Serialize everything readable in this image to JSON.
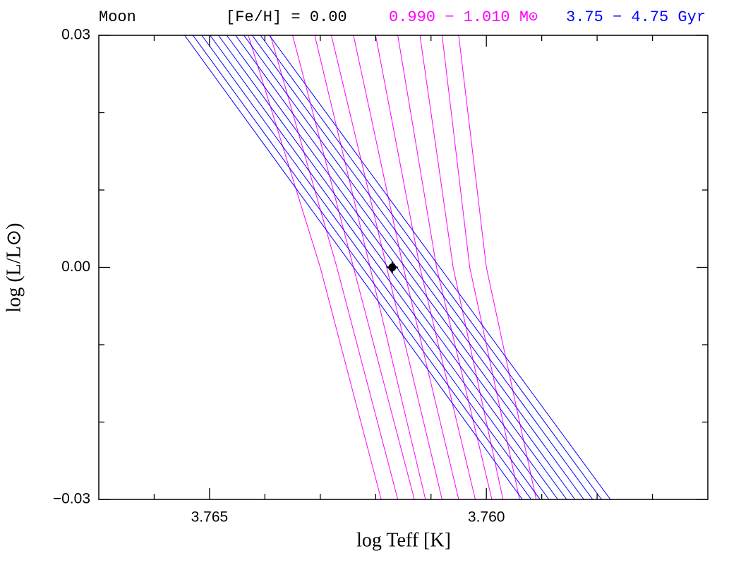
{
  "chart_data": {
    "type": "line",
    "header": [
      "Moon",
      "[Fe/H] = 0.00"
    ],
    "x_label": "log Teff [K]",
    "y_label": "log (L/L⊙)",
    "xlim": [
      3.767,
      3.756
    ],
    "ylim": [
      -0.03,
      0.03
    ],
    "xticks": [
      3.765,
      {
        "value": 3.76,
        "label": "3.760"
      }
    ],
    "xminor": [
      3.766,
      3.764,
      3.763,
      3.762,
      3.761,
      3.759,
      3.758,
      3.757
    ],
    "yticks": [
      {
        "value": -0.03,
        "label": "−0.03"
      },
      {
        "value": 0,
        "label": "0.00"
      },
      0.03
    ],
    "yminor": [
      -0.02,
      -0.01,
      0.01,
      0.02
    ],
    "groups": [
      {
        "label": "0.990 − 1.010 M⊙",
        "color": "#ff00ff",
        "lines": [
          {
            "x": [
              3.7643,
              3.763,
              3.7619
            ],
            "y": [
              0.03,
              0,
              -0.03
            ]
          },
          {
            "x": [
              3.7639,
              3.7627,
              3.7616
            ],
            "y": [
              0.03,
              0,
              -0.03
            ]
          },
          {
            "x": [
              3.7635,
              3.7624,
              3.7613
            ],
            "y": [
              0.03,
              0,
              -0.03
            ]
          },
          {
            "x": [
              3.7631,
              3.7621,
              3.7611
            ],
            "y": [
              0.03,
              0,
              -0.03
            ]
          },
          {
            "x": [
              3.7628,
              3.7618,
              3.7608
            ],
            "y": [
              0.03,
              0,
              -0.03
            ]
          },
          {
            "x": [
              3.7624,
              3.7615,
              3.7605
            ],
            "y": [
              0.03,
              0,
              -0.03
            ]
          },
          {
            "x": [
              3.762,
              3.7612,
              3.7602
            ],
            "y": [
              0.03,
              0,
              -0.03
            ]
          },
          {
            "x": [
              3.7616,
              3.7609,
              3.7599
            ],
            "y": [
              0.03,
              0,
              -0.03
            ]
          },
          {
            "x": [
              3.7612,
              3.7606,
              3.7597
            ],
            "y": [
              0.03,
              0,
              -0.03
            ]
          },
          {
            "x": [
              3.7608,
              3.7603,
              3.7594
            ],
            "y": [
              0.03,
              0,
              -0.03
            ]
          },
          {
            "x": [
              3.7605,
              3.76,
              3.7591
            ],
            "y": [
              0.03,
              0,
              -0.03
            ]
          }
        ]
      },
      {
        "label": "3.75 − 4.75 Gyr",
        "color": "#0000ff",
        "lines": [
          {
            "x": [
              3.76545,
              3.75935
            ],
            "y": [
              0.03,
              -0.03
            ]
          },
          {
            "x": [
              3.7653,
              3.75919
            ],
            "y": [
              0.03,
              -0.03
            ]
          },
          {
            "x": [
              3.76514,
              3.75903
            ],
            "y": [
              0.03,
              -0.03
            ]
          },
          {
            "x": [
              3.76499,
              3.75887
            ],
            "y": [
              0.03,
              -0.03
            ]
          },
          {
            "x": [
              3.76484,
              3.75871
            ],
            "y": [
              0.03,
              -0.03
            ]
          },
          {
            "x": [
              3.76469,
              3.75855
            ],
            "y": [
              0.03,
              -0.03
            ]
          },
          {
            "x": [
              3.76453,
              3.7584
            ],
            "y": [
              0.03,
              -0.03
            ]
          },
          {
            "x": [
              3.76438,
              3.75824
            ],
            "y": [
              0.03,
              -0.03
            ]
          },
          {
            "x": [
              3.76423,
              3.75808
            ],
            "y": [
              0.03,
              -0.03
            ]
          },
          {
            "x": [
              3.76408,
              3.75792
            ],
            "y": [
              0.03,
              -0.03
            ]
          },
          {
            "x": [
              3.76392,
              3.75776
            ],
            "y": [
              0.03,
              -0.03
            ]
          }
        ]
      }
    ],
    "point": {
      "x": 3.7617,
      "y": 0,
      "color": "#000000"
    }
  }
}
